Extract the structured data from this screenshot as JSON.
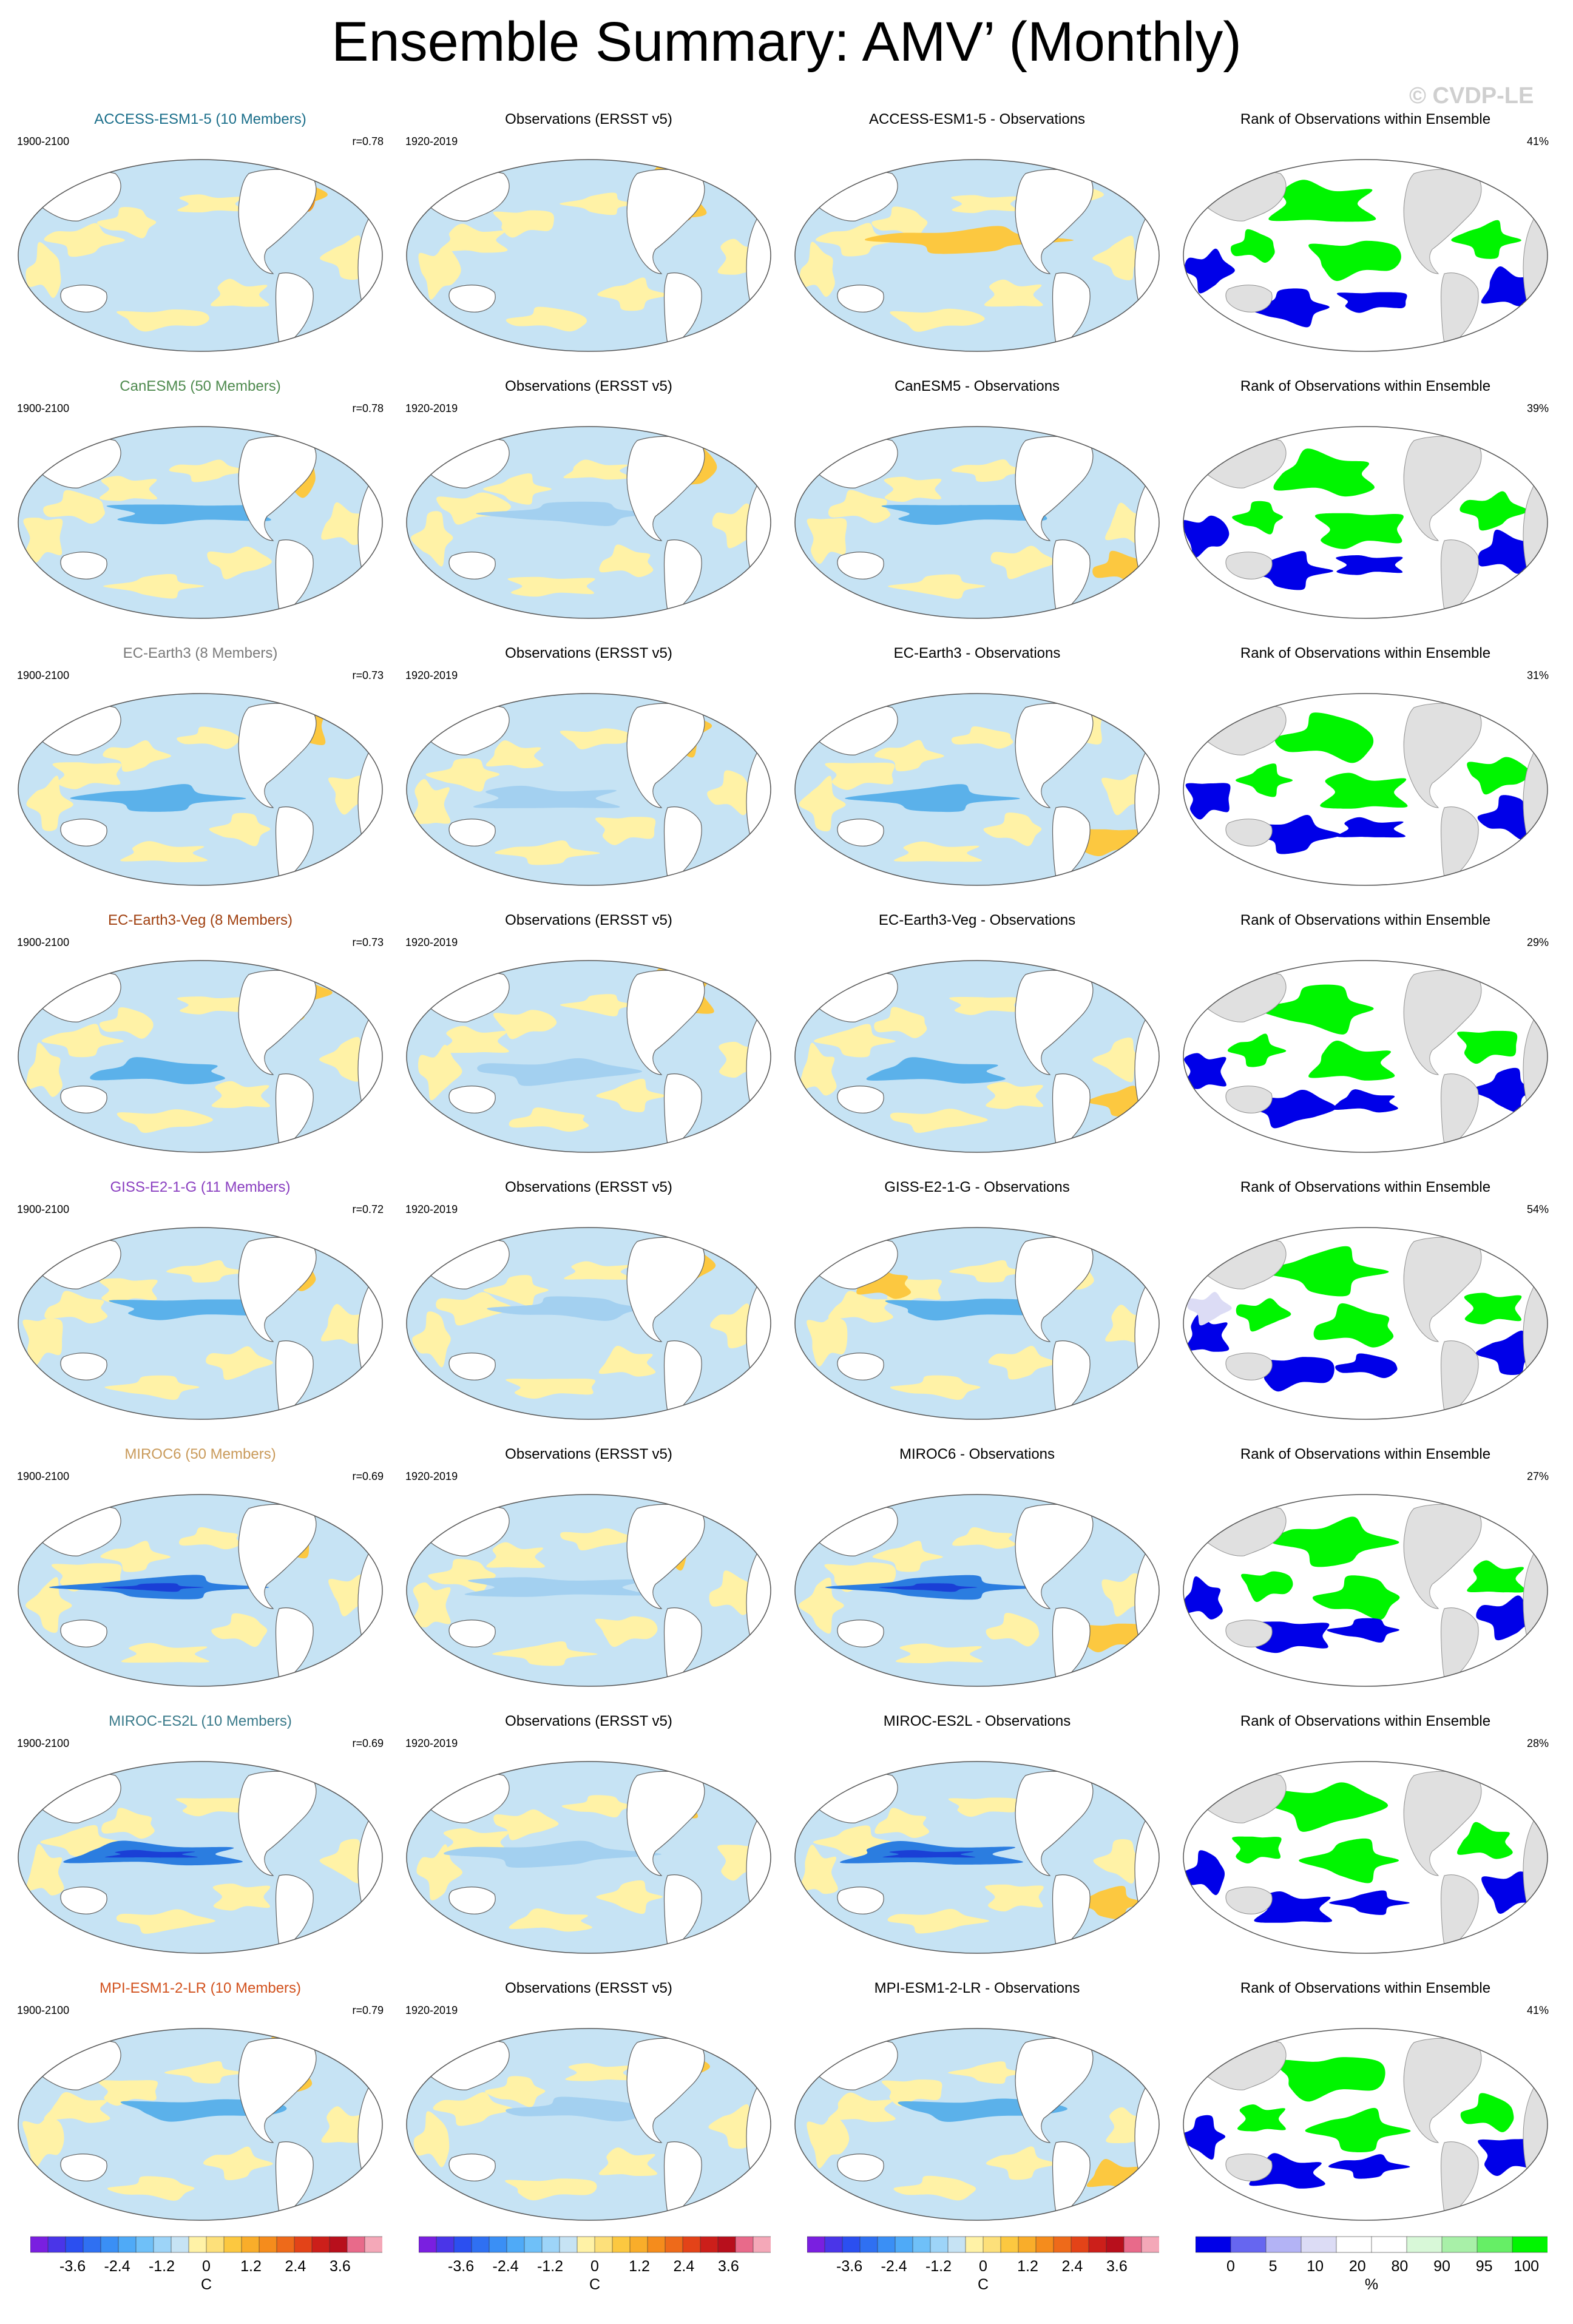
{
  "title": "Ensemble Summary: AMV’ (Monthly)",
  "watermark": "© CVDP-LE",
  "colors": {
    "ocean_light_blue": "#c6e3f4",
    "blue_1": "#a3d0f0",
    "blue_2": "#5bb1ea",
    "blue_3": "#2b7de0",
    "blue_4": "#1a3fd6",
    "yellow_1": "#fff2a6",
    "orange_1": "#fcc840",
    "orange_2": "#f59b1e",
    "red_1": "#e8481a",
    "red_2": "#b80f1c",
    "land_gray": "#e0e0e0",
    "rank_green": "#00f500",
    "rank_blue": "#0000e8",
    "rank_lavender": "#dcdcf5"
  },
  "rows": [
    {
      "model_title": "ACCESS-ESM1-5 (10 Members)",
      "title_color": "#1a6e8a",
      "model_period": "1900-2100",
      "pattern_corr": "r=0.78",
      "obs_title": "Observations (ERSST v5)",
      "obs_period": "1920-2019",
      "diff_title": "ACCESS-ESM1-5 - Observations",
      "rank_title": "Rank of Observations within Ensemble",
      "rank_pct": "41%"
    },
    {
      "model_title": "CanESM5 (50 Members)",
      "title_color": "#4e8a4e",
      "model_period": "1900-2100",
      "pattern_corr": "r=0.78",
      "obs_title": "Observations (ERSST v5)",
      "obs_period": "1920-2019",
      "diff_title": "CanESM5 - Observations",
      "rank_title": "Rank of Observations within Ensemble",
      "rank_pct": "39%"
    },
    {
      "model_title": "EC-Earth3 (8 Members)",
      "title_color": "#7a7a7a",
      "model_period": "1900-2100",
      "pattern_corr": "r=0.73",
      "obs_title": "Observations (ERSST v5)",
      "obs_period": "1920-2019",
      "diff_title": "EC-Earth3 - Observations",
      "rank_title": "Rank of Observations within Ensemble",
      "rank_pct": "31%"
    },
    {
      "model_title": "EC-Earth3-Veg (8 Members)",
      "title_color": "#a04010",
      "model_period": "1900-2100",
      "pattern_corr": "r=0.73",
      "obs_title": "Observations (ERSST v5)",
      "obs_period": "1920-2019",
      "diff_title": "EC-Earth3-Veg - Observations",
      "rank_title": "Rank of Observations within Ensemble",
      "rank_pct": "29%"
    },
    {
      "model_title": "GISS-E2-1-G (11 Members)",
      "title_color": "#8a3fc0",
      "model_period": "1900-2100",
      "pattern_corr": "r=0.72",
      "obs_title": "Observations (ERSST v5)",
      "obs_period": "1920-2019",
      "diff_title": "GISS-E2-1-G - Observations",
      "rank_title": "Rank of Observations within Ensemble",
      "rank_pct": "54%"
    },
    {
      "model_title": "MIROC6 (50 Members)",
      "title_color": "#c99a5a",
      "model_period": "1900-2100",
      "pattern_corr": "r=0.69",
      "obs_title": "Observations (ERSST v5)",
      "obs_period": "1920-2019",
      "diff_title": "MIROC6 - Observations",
      "rank_title": "Rank of Observations within Ensemble",
      "rank_pct": "27%"
    },
    {
      "model_title": "MIROC-ES2L (10 Members)",
      "title_color": "#3a7a8a",
      "model_period": "1900-2100",
      "pattern_corr": "r=0.69",
      "obs_title": "Observations (ERSST v5)",
      "obs_period": "1920-2019",
      "diff_title": "MIROC-ES2L - Observations",
      "rank_title": "Rank of Observations within Ensemble",
      "rank_pct": "28%"
    },
    {
      "model_title": "MPI-ESM1-2-LR (10 Members)",
      "title_color": "#d2521e",
      "model_period": "1900-2100",
      "pattern_corr": "r=0.79",
      "obs_title": "Observations (ERSST v5)",
      "obs_period": "1920-2019",
      "diff_title": "MPI-ESM1-2-LR - Observations",
      "rank_title": "Rank of Observations within Ensemble",
      "rank_pct": "41%"
    }
  ],
  "colorbars": {
    "sst": {
      "unit": "C",
      "ticks": [
        "-3.6",
        "-2.4",
        "-1.2",
        "0",
        "1.2",
        "2.4",
        "3.6"
      ],
      "colors": [
        "#7a1fe0",
        "#4a35e8",
        "#2b4ff0",
        "#2f70f2",
        "#3a8ff5",
        "#4faaf7",
        "#6fc0f8",
        "#9dd4f8",
        "#c6e3f4",
        "#fff2a6",
        "#fde07a",
        "#fcc840",
        "#f9ad2a",
        "#f58c1c",
        "#ee6a1a",
        "#e34318",
        "#cc1f1a",
        "#b80f1c",
        "#e86a8a",
        "#f4a8b8"
      ]
    },
    "rank": {
      "unit": "%",
      "ticks": [
        "0",
        "5",
        "10",
        "20",
        "80",
        "90",
        "95",
        "100"
      ],
      "colors": [
        "#0000e8",
        "#6666f0",
        "#b3b3f5",
        "#dcdcf5",
        "#ffffff",
        "#ffffff",
        "#d8f8d8",
        "#a8f0a8",
        "#66ee66",
        "#00f500"
      ]
    }
  },
  "chart_data": [
    {
      "type": "heatmap",
      "title": "ACCESS-ESM1-5 (10 Members)",
      "subtitle": "1900-2100",
      "annotation": "r=0.78",
      "unit": "C",
      "colorbar_ticks": [
        -3.6,
        -2.4,
        -1.2,
        0,
        1.2,
        2.4,
        3.6
      ]
    },
    {
      "type": "heatmap",
      "title": "Observations (ERSST v5)",
      "subtitle": "1920-2019",
      "unit": "C",
      "colorbar_ticks": [
        -3.6,
        -2.4,
        -1.2,
        0,
        1.2,
        2.4,
        3.6
      ]
    },
    {
      "type": "heatmap",
      "title": "ACCESS-ESM1-5 - Observations",
      "unit": "C",
      "colorbar_ticks": [
        -3.6,
        -2.4,
        -1.2,
        0,
        1.2,
        2.4,
        3.6
      ]
    },
    {
      "type": "heatmap",
      "title": "Rank of Observations within Ensemble",
      "annotation": "41%",
      "unit": "%",
      "colorbar_ticks": [
        0,
        5,
        10,
        20,
        80,
        90,
        95,
        100
      ]
    },
    {
      "type": "heatmap",
      "title": "CanESM5 (50 Members)",
      "subtitle": "1900-2100",
      "annotation": "r=0.78",
      "unit": "C"
    },
    {
      "type": "heatmap",
      "title": "CanESM5 - Observations",
      "unit": "C"
    },
    {
      "type": "heatmap",
      "title": "Rank of Observations within Ensemble",
      "annotation": "39%",
      "unit": "%"
    },
    {
      "type": "heatmap",
      "title": "EC-Earth3 (8 Members)",
      "subtitle": "1900-2100",
      "annotation": "r=0.73",
      "unit": "C"
    },
    {
      "type": "heatmap",
      "title": "EC-Earth3 - Observations",
      "unit": "C"
    },
    {
      "type": "heatmap",
      "title": "Rank of Observations within Ensemble",
      "annotation": "31%",
      "unit": "%"
    },
    {
      "type": "heatmap",
      "title": "EC-Earth3-Veg (8 Members)",
      "subtitle": "1900-2100",
      "annotation": "r=0.73",
      "unit": "C"
    },
    {
      "type": "heatmap",
      "title": "EC-Earth3-Veg - Observations",
      "unit": "C"
    },
    {
      "type": "heatmap",
      "title": "Rank of Observations within Ensemble",
      "annotation": "29%",
      "unit": "%"
    },
    {
      "type": "heatmap",
      "title": "GISS-E2-1-G (11 Members)",
      "subtitle": "1900-2100",
      "annotation": "r=0.72",
      "unit": "C"
    },
    {
      "type": "heatmap",
      "title": "GISS-E2-1-G - Observations",
      "unit": "C"
    },
    {
      "type": "heatmap",
      "title": "Rank of Observations within Ensemble",
      "annotation": "54%",
      "unit": "%"
    },
    {
      "type": "heatmap",
      "title": "MIROC6 (50 Members)",
      "subtitle": "1900-2100",
      "annotation": "r=0.69",
      "unit": "C"
    },
    {
      "type": "heatmap",
      "title": "MIROC6 - Observations",
      "unit": "C"
    },
    {
      "type": "heatmap",
      "title": "Rank of Observations within Ensemble",
      "annotation": "27%",
      "unit": "%"
    },
    {
      "type": "heatmap",
      "title": "MIROC-ES2L (10 Members)",
      "subtitle": "1900-2100",
      "annotation": "r=0.69",
      "unit": "C"
    },
    {
      "type": "heatmap",
      "title": "MIROC-ES2L - Observations",
      "unit": "C"
    },
    {
      "type": "heatmap",
      "title": "Rank of Observations within Ensemble",
      "annotation": "28%",
      "unit": "%"
    },
    {
      "type": "heatmap",
      "title": "MPI-ESM1-2-LR (10 Members)",
      "subtitle": "1900-2100",
      "annotation": "r=0.79",
      "unit": "C"
    },
    {
      "type": "heatmap",
      "title": "MPI-ESM1-2-LR - Observations",
      "unit": "C"
    },
    {
      "type": "heatmap",
      "title": "Rank of Observations within Ensemble",
      "annotation": "41%",
      "unit": "%"
    }
  ]
}
